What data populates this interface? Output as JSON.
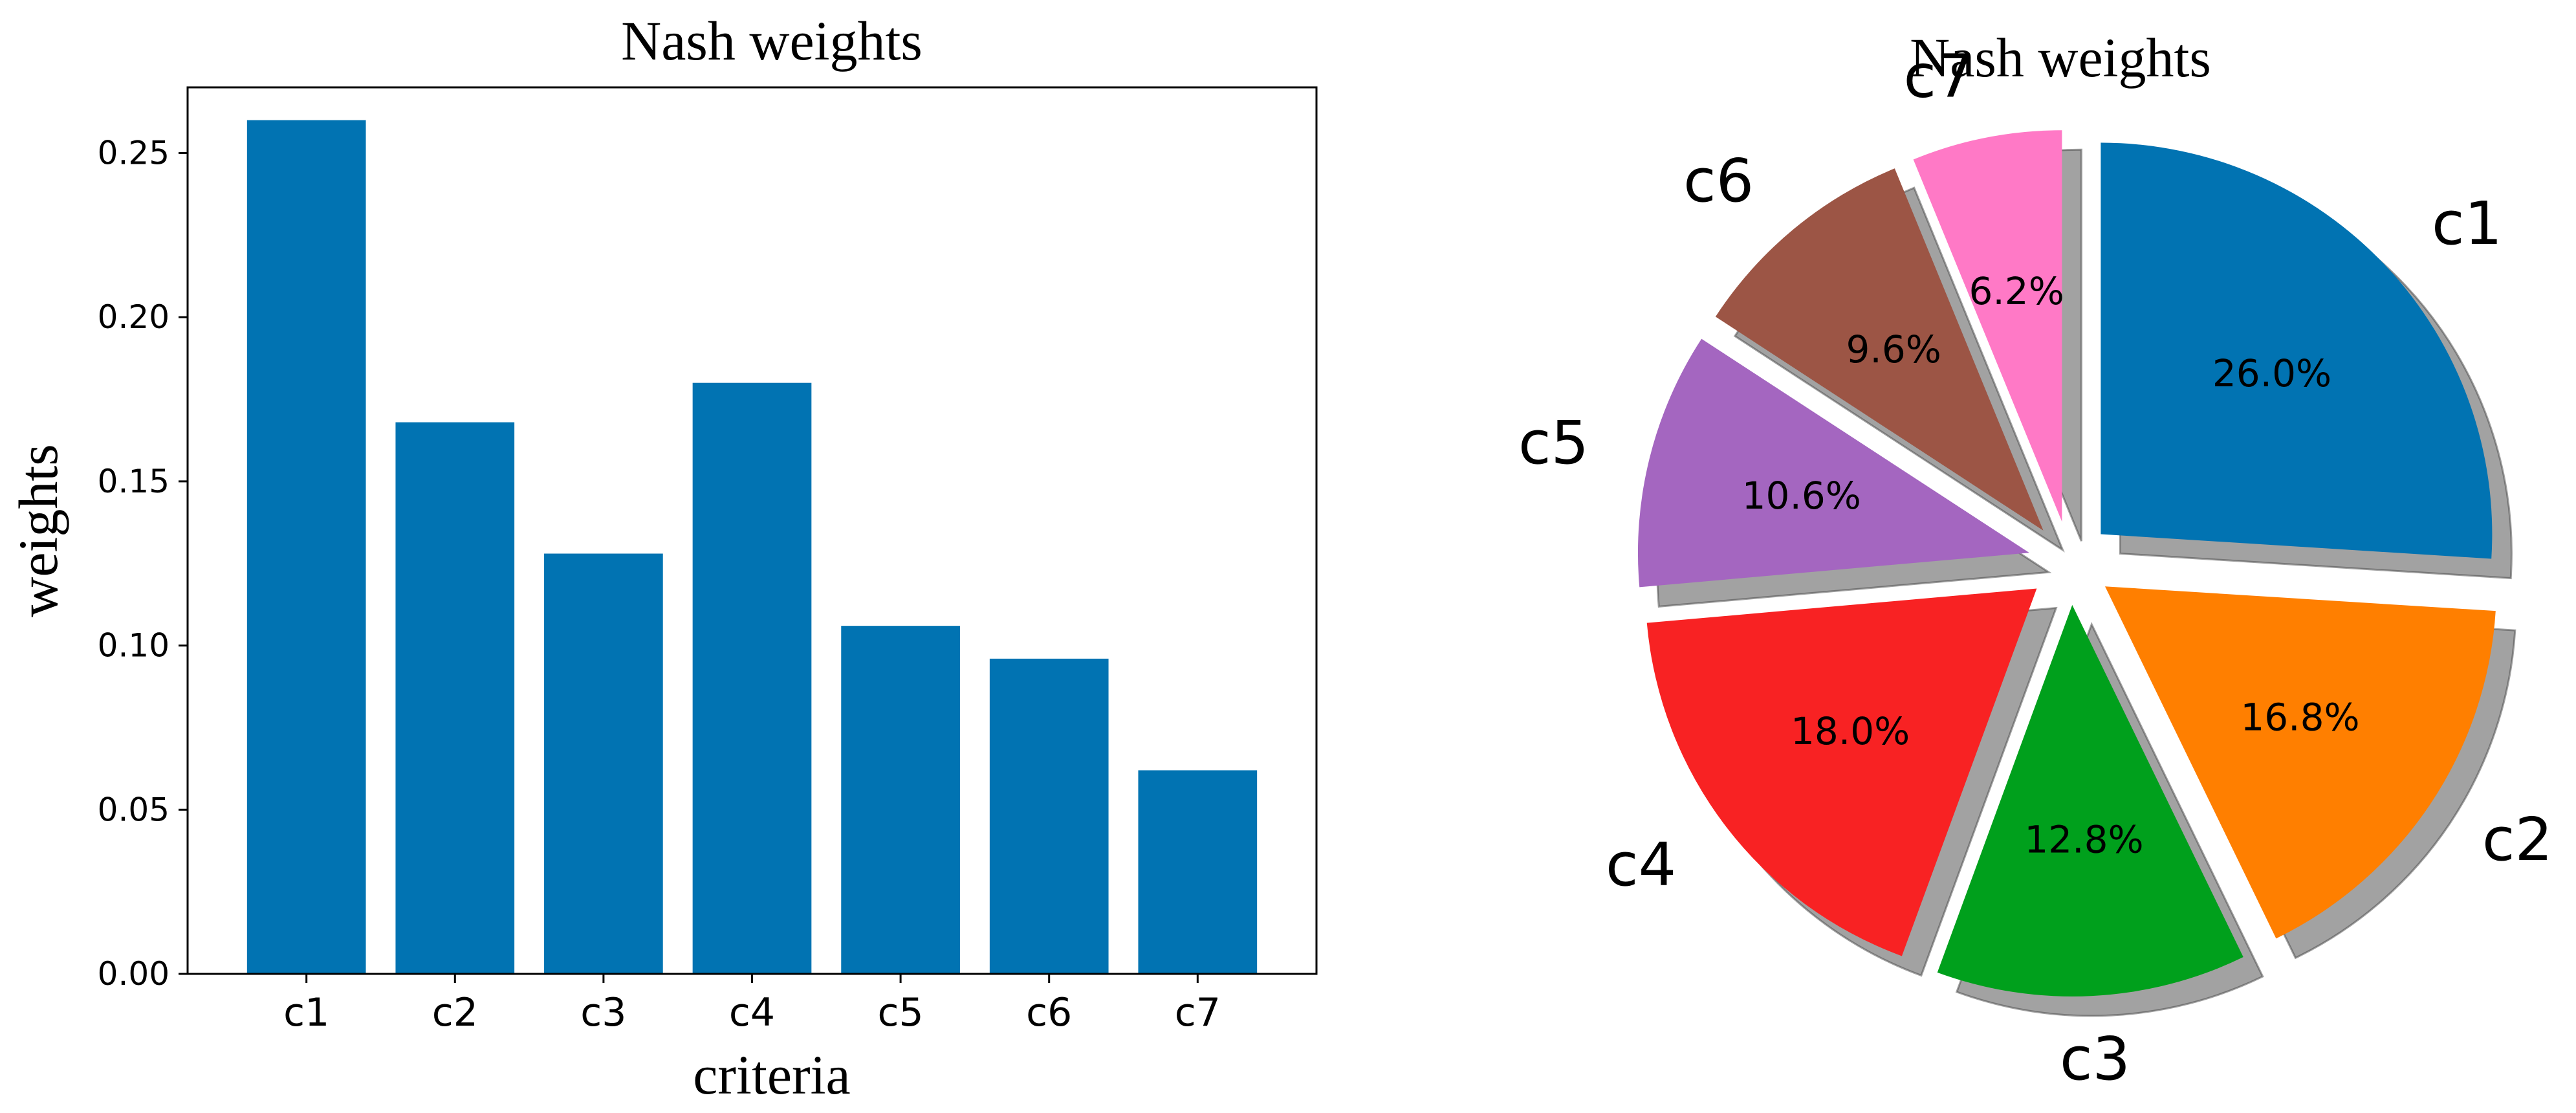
{
  "chart_data": [
    {
      "type": "bar",
      "title": "Nash weights",
      "xlabel": "criteria",
      "ylabel": "weights",
      "categories": [
        "c1",
        "c2",
        "c3",
        "c4",
        "c5",
        "c6",
        "c7"
      ],
      "values": [
        0.26,
        0.168,
        0.128,
        0.18,
        0.106,
        0.096,
        0.062
      ],
      "ylim": [
        0,
        0.27
      ],
      "yticks": [
        "0.00",
        "0.05",
        "0.10",
        "0.15",
        "0.20",
        "0.25"
      ],
      "grid": false,
      "color": "#0173b2"
    },
    {
      "type": "pie",
      "title": "Nash weights",
      "labels": [
        "c1",
        "c2",
        "c3",
        "c4",
        "c5",
        "c6",
        "c7"
      ],
      "values": [
        26.0,
        16.8,
        12.8,
        18.0,
        10.6,
        9.6,
        6.2
      ],
      "value_labels": [
        "26.0%",
        "16.8%",
        "12.8%",
        "18.0%",
        "10.6%",
        "9.6%",
        "6.2%"
      ],
      "colors": [
        "#0173b2",
        "#ff7f00",
        "#00a01c",
        "#f82223",
        "#a466c0",
        "#9c5545",
        "#ff79c6"
      ],
      "exploded": true,
      "shadow": true,
      "start": "top"
    }
  ]
}
